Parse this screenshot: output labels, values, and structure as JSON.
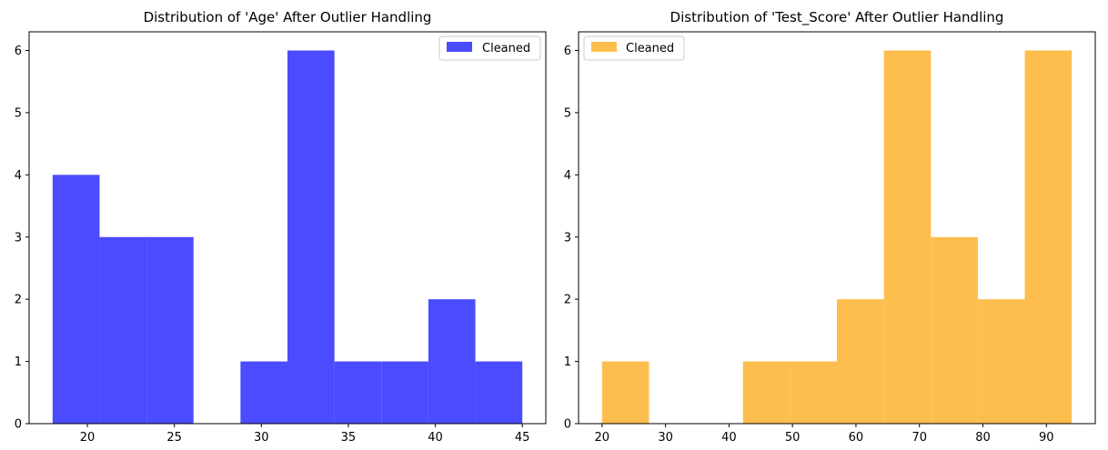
{
  "chart_data": [
    {
      "type": "bar",
      "title": "Distribution of 'Age' After Outlier Handling",
      "xlabel": "",
      "ylabel": "",
      "xlim": [
        16.65,
        46.35
      ],
      "ylim": [
        0,
        6.3
      ],
      "xticks": [
        20,
        25,
        30,
        35,
        40,
        45
      ],
      "yticks": [
        0,
        1,
        2,
        3,
        4,
        5,
        6
      ],
      "color": "#4b4bff",
      "legend": {
        "position": "top-right",
        "label": "Cleaned"
      },
      "bins": [
        {
          "x0": 18.0,
          "x1": 20.7,
          "count": 4
        },
        {
          "x0": 20.7,
          "x1": 23.4,
          "count": 3
        },
        {
          "x0": 23.4,
          "x1": 26.1,
          "count": 3
        },
        {
          "x0": 26.1,
          "x1": 28.8,
          "count": 0
        },
        {
          "x0": 28.8,
          "x1": 31.5,
          "count": 1
        },
        {
          "x0": 31.5,
          "x1": 34.2,
          "count": 6
        },
        {
          "x0": 34.2,
          "x1": 36.9,
          "count": 1
        },
        {
          "x0": 36.9,
          "x1": 39.6,
          "count": 1
        },
        {
          "x0": 39.6,
          "x1": 42.3,
          "count": 2
        },
        {
          "x0": 42.3,
          "x1": 45.0,
          "count": 1
        }
      ]
    },
    {
      "type": "bar",
      "title": "Distribution of 'Test_Score' After Outlier Handling",
      "xlabel": "",
      "ylabel": "",
      "xlim": [
        16.3,
        97.7
      ],
      "ylim": [
        0,
        6.3
      ],
      "xticks": [
        20,
        30,
        40,
        50,
        60,
        70,
        80,
        90
      ],
      "yticks": [
        0,
        1,
        2,
        3,
        4,
        5,
        6
      ],
      "color": "#fdbe4d",
      "legend": {
        "position": "top-left",
        "label": "Cleaned"
      },
      "bins": [
        {
          "x0": 20.0,
          "x1": 27.4,
          "count": 1
        },
        {
          "x0": 27.4,
          "x1": 34.8,
          "count": 0
        },
        {
          "x0": 34.8,
          "x1": 42.2,
          "count": 0
        },
        {
          "x0": 42.2,
          "x1": 49.6,
          "count": 1
        },
        {
          "x0": 49.6,
          "x1": 57.0,
          "count": 1
        },
        {
          "x0": 57.0,
          "x1": 64.4,
          "count": 2
        },
        {
          "x0": 64.4,
          "x1": 71.8,
          "count": 6
        },
        {
          "x0": 71.8,
          "x1": 79.2,
          "count": 3
        },
        {
          "x0": 79.2,
          "x1": 86.6,
          "count": 2
        },
        {
          "x0": 86.6,
          "x1": 94.0,
          "count": 6
        }
      ]
    }
  ]
}
